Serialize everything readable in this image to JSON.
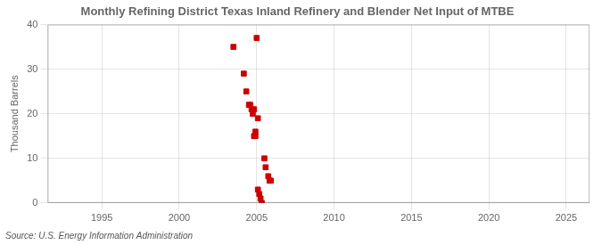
{
  "chart_data": {
    "type": "scatter",
    "title": "Monthly Refining District Texas Inland Refinery and Blender Net Input of MTBE",
    "ylabel": "Thousand Barrels",
    "source": "Source: U.S. Energy Information Administration",
    "x": [
      2003.5,
      2004.17,
      2004.33,
      2004.5,
      2004.58,
      2004.67,
      2004.75,
      2004.83,
      2004.92,
      2004.83,
      2004.92,
      2005.0,
      2005.08,
      2005.08,
      2005.17,
      2005.25,
      2005.33,
      2005.5,
      2005.58,
      2005.75,
      2005.83,
      2005.92
    ],
    "values": [
      35,
      29,
      25,
      22,
      22,
      21,
      20,
      21,
      16,
      15,
      15,
      37,
      19,
      3,
      2,
      1,
      0,
      10,
      8,
      6,
      5,
      5
    ],
    "color": "#cc0000",
    "marker": "square",
    "xlim": [
      1991.5,
      2026.5
    ],
    "ylim": [
      0,
      40
    ],
    "xticks": [
      1995,
      2000,
      2005,
      2010,
      2015,
      2020,
      2025
    ],
    "yticks": [
      0,
      10,
      20,
      30,
      40
    ],
    "grid": true
  }
}
